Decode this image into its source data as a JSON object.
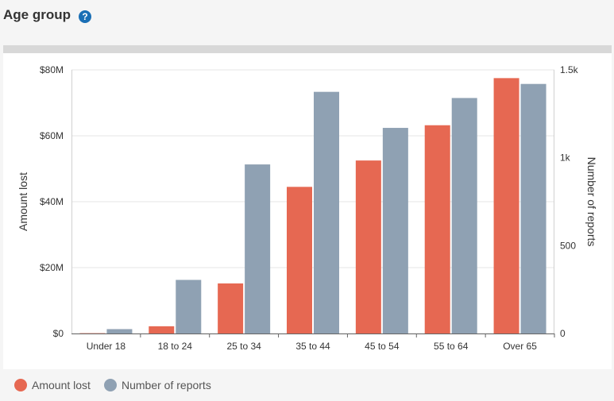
{
  "header": {
    "title": "Age group",
    "help_glyph": "?"
  },
  "chart_data": {
    "type": "bar",
    "categories": [
      "Under 18",
      "18 to 24",
      "25 to 34",
      "35 to 44",
      "45 to 54",
      "55 to 64",
      "Over 65"
    ],
    "series": [
      {
        "name": "Amount lost",
        "axis": "left",
        "color": "#e66852",
        "values": [
          0.1,
          2.2,
          15.2,
          44.5,
          52.5,
          63.2,
          77.5
        ]
      },
      {
        "name": "Number of reports",
        "axis": "right",
        "color": "#8fa1b3",
        "values": [
          25,
          305,
          962,
          1375,
          1170,
          1340,
          1420
        ]
      }
    ],
    "ylabel": "Amount lost",
    "ylabel_right": "Number of reports",
    "ylim": [
      0,
      80
    ],
    "ylim_right": [
      0,
      1500
    ],
    "yticks": [
      "$0",
      "$20M",
      "$40M",
      "$60M",
      "$80M"
    ],
    "yticks_right": [
      "0",
      "500",
      "1k",
      "1.5k"
    ],
    "yticks_right_values": [
      0,
      500,
      1000,
      1500
    ],
    "grid": true,
    "legend_position": "bottom-left"
  },
  "legend": {
    "items": [
      "Amount lost",
      "Number of reports"
    ]
  }
}
